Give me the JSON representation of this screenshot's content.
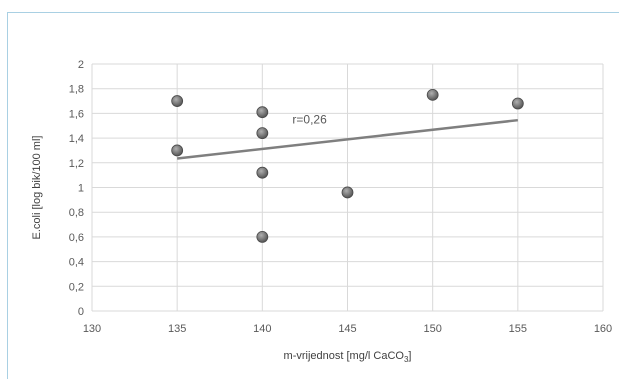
{
  "chart_data": {
    "type": "scatter",
    "title": "",
    "xlabel": "m-vrijednost [mg/l CaCO",
    "xlabel_sub": "3",
    "xlabel_end": "]",
    "ylabel": "E.coli [log bik/100 ml]",
    "xlim": [
      130,
      160
    ],
    "ylim": [
      0,
      2
    ],
    "x_ticks": [
      "130",
      "135",
      "140",
      "145",
      "150",
      "155",
      "160"
    ],
    "y_ticks": [
      "0",
      "0,2",
      "0,4",
      "0,6",
      "0,8",
      "1",
      "1,2",
      "1,4",
      "1,6",
      "1,8",
      "2"
    ],
    "grid": true,
    "legend": "none",
    "series": [
      {
        "points": [
          {
            "x": 135,
            "y": 1.7
          },
          {
            "x": 135,
            "y": 1.3
          },
          {
            "x": 140,
            "y": 1.61
          },
          {
            "x": 140,
            "y": 1.44
          },
          {
            "x": 140,
            "y": 1.12
          },
          {
            "x": 140,
            "y": 0.6
          },
          {
            "x": 145,
            "y": 0.96
          },
          {
            "x": 150,
            "y": 1.75
          },
          {
            "x": 155,
            "y": 1.68
          }
        ],
        "color": "#7f7f7f"
      }
    ],
    "trendline": {
      "x": [
        135,
        155
      ],
      "y": [
        1.235,
        1.545
      ],
      "color": "#7f7f7f"
    },
    "annotation": {
      "text": "r=0,26",
      "x": 142,
      "y": 1.55
    }
  }
}
